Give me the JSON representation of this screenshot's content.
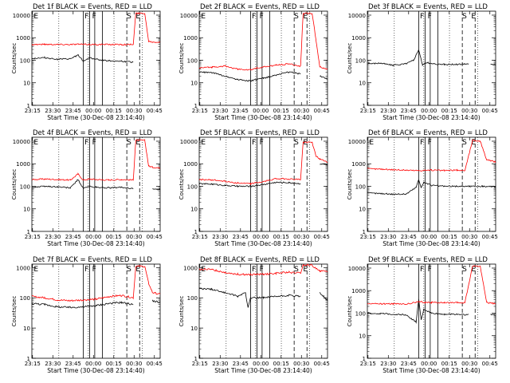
{
  "shared": {
    "xlabel": "Start Time (30-Dec-08 23:14:40)",
    "ylabel": "Counts/sec",
    "x_ticks": [
      "23:15",
      "23:30",
      "23:45",
      "00:00",
      "00:15",
      "00:30",
      "00:45"
    ],
    "y_ticks": [
      "1",
      "10",
      "100",
      "1000",
      "10000"
    ],
    "colors": {
      "events": "#000000",
      "lld": "#ff0000"
    }
  },
  "chart_data": [
    {
      "type": "line",
      "title": "Det 1f BLACK = Events, RED = LLD",
      "corner_labels": [
        "E",
        "F",
        "F",
        "S",
        "E"
      ],
      "xlim": [
        0,
        100
      ],
      "ylim": [
        1,
        15000
      ],
      "yscale": "log",
      "grid": false,
      "series": [
        {
          "name": "Events",
          "color": "#000000",
          "x": [
            0,
            10,
            20,
            30,
            36,
            40,
            45,
            50,
            60,
            70,
            75,
            79,
            82,
            90,
            94,
            100
          ],
          "values": [
            120,
            130,
            110,
            115,
            170,
            90,
            130,
            110,
            95,
            90,
            85,
            82,
            null,
            null,
            null,
            null
          ]
        },
        {
          "name": "LLD",
          "color": "#ff0000",
          "x": [
            0,
            10,
            20,
            30,
            36,
            40,
            45,
            50,
            60,
            70,
            75,
            79,
            81,
            88,
            91,
            94,
            100
          ],
          "values": [
            500,
            510,
            505,
            500,
            520,
            500,
            505,
            500,
            500,
            500,
            500,
            500,
            12000,
            12000,
            700,
            650,
            640
          ]
        }
      ]
    },
    {
      "type": "line",
      "title": "Det 2f BLACK = Events, RED = LLD",
      "corner_labels": [
        "E",
        "F",
        "F",
        "S",
        "E"
      ],
      "xlim": [
        0,
        100
      ],
      "ylim": [
        1,
        15000
      ],
      "yscale": "log",
      "grid": false,
      "series": [
        {
          "name": "Events",
          "color": "#000000",
          "x": [
            0,
            10,
            20,
            30,
            40,
            45,
            50,
            60,
            70,
            75,
            79,
            82,
            90,
            94,
            100
          ],
          "values": [
            30,
            28,
            20,
            14,
            12,
            14,
            16,
            22,
            30,
            27,
            25,
            null,
            null,
            20,
            15
          ]
        },
        {
          "name": "LLD",
          "color": "#ff0000",
          "x": [
            0,
            10,
            20,
            30,
            40,
            45,
            50,
            60,
            70,
            75,
            79,
            81,
            88,
            91,
            94,
            100
          ],
          "values": [
            45,
            50,
            55,
            40,
            38,
            45,
            50,
            60,
            70,
            60,
            55,
            12000,
            12000,
            800,
            50,
            40
          ]
        }
      ]
    },
    {
      "type": "line",
      "title": "Det 3f BLACK = Events, RED = LLD",
      "corner_labels": [
        "F",
        "F",
        "S",
        "E"
      ],
      "xlim": [
        0,
        100
      ],
      "ylim": [
        1,
        15000
      ],
      "yscale": "log",
      "grid": false,
      "series": [
        {
          "name": "Events",
          "color": "#000000",
          "x": [
            0,
            10,
            20,
            30,
            36,
            40,
            43,
            46,
            50,
            60,
            70,
            79,
            92,
            96,
            100
          ],
          "values": [
            70,
            75,
            60,
            70,
            100,
            300,
            60,
            80,
            70,
            65,
            65,
            70,
            null,
            70,
            60
          ]
        }
      ]
    },
    {
      "type": "line",
      "title": "Det 4f BLACK = Events, RED = LLD",
      "corner_labels": [
        "E",
        "F",
        "F",
        "S",
        "E"
      ],
      "xlim": [
        0,
        100
      ],
      "ylim": [
        1,
        15000
      ],
      "yscale": "log",
      "grid": false,
      "series": [
        {
          "name": "Events",
          "color": "#000000",
          "x": [
            0,
            10,
            20,
            30,
            36,
            40,
            45,
            50,
            60,
            70,
            79,
            82,
            90,
            94,
            100
          ],
          "values": [
            90,
            100,
            95,
            85,
            200,
            80,
            100,
            90,
            85,
            90,
            80,
            null,
            null,
            75,
            70
          ]
        },
        {
          "name": "LLD",
          "color": "#ff0000",
          "x": [
            0,
            10,
            20,
            30,
            36,
            40,
            45,
            50,
            60,
            70,
            79,
            81,
            88,
            91,
            94,
            100
          ],
          "values": [
            200,
            210,
            200,
            190,
            350,
            190,
            210,
            200,
            190,
            200,
            190,
            11000,
            11000,
            800,
            700,
            650
          ]
        }
      ]
    },
    {
      "type": "line",
      "title": "Det 5f BLACK = Events, RED = LLD",
      "corner_labels": [
        "E",
        "F",
        "F",
        "S",
        "E"
      ],
      "xlim": [
        0,
        100
      ],
      "ylim": [
        1,
        15000
      ],
      "yscale": "log",
      "grid": false,
      "series": [
        {
          "name": "Events",
          "color": "#000000",
          "x": [
            0,
            10,
            20,
            30,
            40,
            50,
            60,
            70,
            79,
            82,
            90,
            94,
            100
          ],
          "values": [
            130,
            125,
            110,
            100,
            100,
            120,
            150,
            145,
            130,
            null,
            null,
            1000,
            900
          ]
        },
        {
          "name": "LLD",
          "color": "#ff0000",
          "x": [
            0,
            10,
            20,
            30,
            40,
            50,
            60,
            70,
            79,
            81,
            88,
            91,
            94,
            100
          ],
          "values": [
            200,
            190,
            170,
            140,
            130,
            160,
            220,
            210,
            200,
            9000,
            9000,
            2200,
            1600,
            1200
          ]
        }
      ]
    },
    {
      "type": "line",
      "title": "Det 6f BLACK = Events, RED = LLD",
      "corner_labels": [
        "E",
        "F",
        "F",
        "S",
        "E"
      ],
      "xlim": [
        0,
        100
      ],
      "ylim": [
        1,
        15000
      ],
      "yscale": "log",
      "grid": false,
      "series": [
        {
          "name": "Events",
          "color": "#000000",
          "x": [
            0,
            10,
            20,
            30,
            38,
            40,
            42,
            44,
            50,
            60,
            70,
            80,
            90,
            100
          ],
          "values": [
            50,
            48,
            45,
            45,
            90,
            200,
            90,
            150,
            110,
            100,
            100,
            100,
            100,
            95
          ]
        },
        {
          "name": "LLD",
          "color": "#ff0000",
          "x": [
            0,
            10,
            20,
            30,
            40,
            45,
            50,
            60,
            70,
            76,
            82,
            88,
            93,
            100
          ],
          "values": [
            600,
            580,
            550,
            520,
            500,
            520,
            520,
            500,
            520,
            500,
            11000,
            10000,
            1500,
            1200
          ]
        }
      ]
    },
    {
      "type": "line",
      "title": "Det 7f BLACK = Events, RED = LLD",
      "corner_labels": [
        "E",
        "F",
        "F",
        "S",
        "E"
      ],
      "xlim": [
        0,
        100
      ],
      "ylim": [
        1,
        1300
      ],
      "yscale": "log",
      "grid": false,
      "series": [
        {
          "name": "Events",
          "color": "#000000",
          "x": [
            0,
            10,
            20,
            30,
            40,
            50,
            60,
            70,
            79,
            82,
            90,
            94,
            100
          ],
          "values": [
            65,
            60,
            50,
            48,
            50,
            55,
            65,
            70,
            60,
            null,
            null,
            80,
            70
          ]
        },
        {
          "name": "LLD",
          "color": "#ff0000",
          "x": [
            0,
            10,
            20,
            30,
            40,
            50,
            60,
            70,
            79,
            81,
            88,
            91,
            94,
            100
          ],
          "values": [
            110,
            100,
            85,
            80,
            85,
            90,
            110,
            120,
            100,
            1100,
            1100,
            300,
            150,
            130
          ]
        }
      ]
    },
    {
      "type": "line",
      "title": "Det 8f BLACK = Events, RED = LLD",
      "corner_labels": [
        "E",
        "F",
        "F",
        "S",
        "E"
      ],
      "xlim": [
        0,
        100
      ],
      "ylim": [
        1,
        1300
      ],
      "yscale": "log",
      "grid": false,
      "series": [
        {
          "name": "Events",
          "color": "#000000",
          "x": [
            0,
            10,
            20,
            30,
            36,
            38,
            40,
            50,
            60,
            70,
            79,
            82,
            90,
            94,
            100
          ],
          "values": [
            200,
            190,
            150,
            110,
            150,
            50,
            100,
            100,
            110,
            120,
            110,
            null,
            null,
            150,
            80
          ]
        },
        {
          "name": "LLD",
          "color": "#ff0000",
          "x": [
            0,
            10,
            20,
            30,
            40,
            50,
            60,
            70,
            79,
            81,
            88,
            91,
            94,
            100
          ],
          "values": [
            900,
            850,
            700,
            600,
            580,
            600,
            650,
            700,
            650,
            1200,
            1200,
            900,
            800,
            700
          ]
        }
      ]
    },
    {
      "type": "line",
      "title": "Det 9f BLACK = Events, RED = LLD",
      "corner_labels": [
        "F",
        "F",
        "S",
        "E"
      ],
      "xlim": [
        0,
        100
      ],
      "ylim": [
        1,
        15000
      ],
      "yscale": "log",
      "grid": false,
      "series": [
        {
          "name": "Events",
          "color": "#000000",
          "x": [
            0,
            10,
            20,
            30,
            38,
            40,
            42,
            44,
            50,
            60,
            70,
            79,
            92,
            96,
            100
          ],
          "values": [
            100,
            95,
            90,
            85,
            40,
            400,
            50,
            150,
            100,
            90,
            90,
            85,
            null,
            90,
            80
          ]
        },
        {
          "name": "LLD",
          "color": "#ff0000",
          "x": [
            0,
            10,
            20,
            30,
            40,
            45,
            50,
            60,
            70,
            76,
            82,
            88,
            93,
            100
          ],
          "values": [
            270,
            260,
            260,
            250,
            320,
            300,
            300,
            290,
            290,
            290,
            12000,
            12000,
            300,
            260
          ]
        }
      ]
    }
  ]
}
